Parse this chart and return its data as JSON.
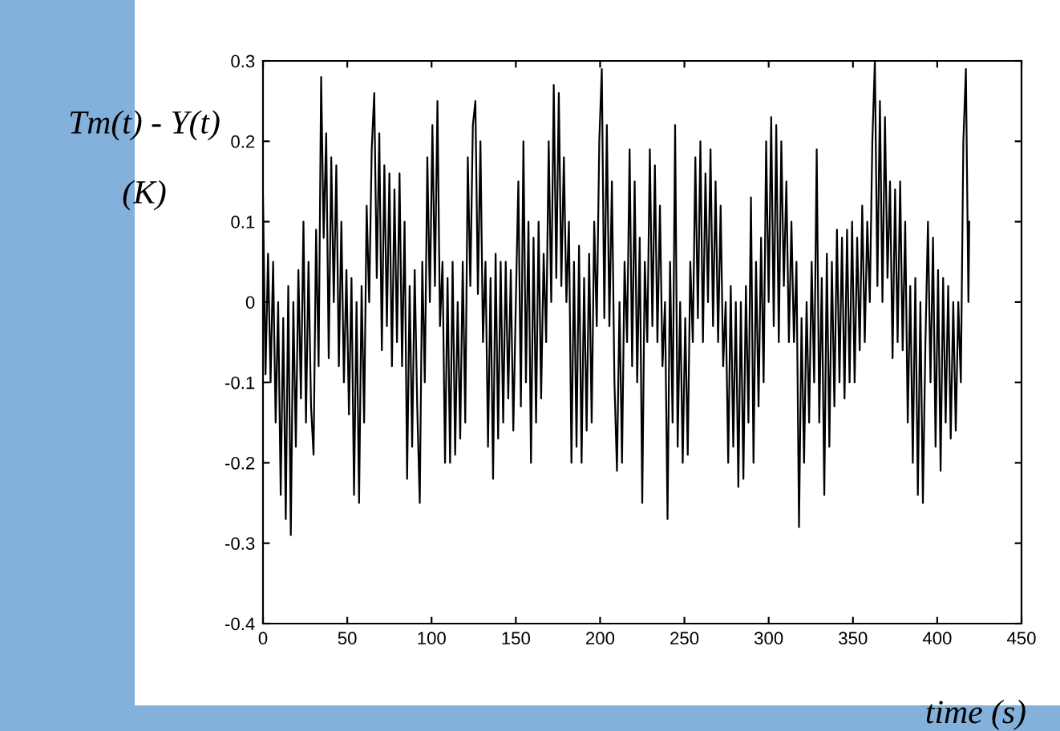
{
  "chart_data": {
    "type": "line",
    "xlabel": "time (s)",
    "ylabel": "Tm(t) - Y(t)\n\n(K)",
    "xlim": [
      0,
      450
    ],
    "ylim": [
      -0.4,
      0.3
    ],
    "xticks": [
      0,
      50,
      100,
      150,
      200,
      250,
      300,
      350,
      400,
      450
    ],
    "yticks": [
      -0.4,
      -0.3,
      -0.2,
      -0.1,
      0,
      0.1,
      0.2,
      0.3
    ],
    "series": [
      {
        "color": "#000000",
        "x": [
          0,
          1.5,
          3,
          4.5,
          6,
          7.5,
          9,
          10.5,
          12,
          13.5,
          15,
          16.5,
          18,
          19.5,
          21,
          22.5,
          24,
          25.5,
          27,
          28.5,
          30,
          31.5,
          33,
          34.5,
          36,
          37.5,
          39,
          40.5,
          42,
          43.5,
          45,
          46.5,
          48,
          49.5,
          51,
          52.5,
          54,
          55.5,
          57,
          58.5,
          60,
          61.5,
          63,
          64.5,
          66,
          67.5,
          69,
          70.5,
          72,
          73.5,
          75,
          76.5,
          78,
          79.5,
          81,
          82.5,
          84,
          85.5,
          87,
          88.5,
          90,
          91.5,
          93,
          94.5,
          96,
          97.5,
          99,
          100.5,
          102,
          103.5,
          105,
          106.5,
          108,
          109.5,
          111,
          112.5,
          114,
          115.5,
          117,
          118.5,
          120,
          121.5,
          123,
          124.5,
          126,
          127.5,
          129,
          130.5,
          132,
          133.5,
          135,
          136.5,
          138,
          139.5,
          141,
          142.5,
          144,
          145.5,
          147,
          148.5,
          150,
          151.5,
          153,
          154.5,
          156,
          157.5,
          159,
          160.5,
          162,
          163.5,
          165,
          166.5,
          168,
          169.5,
          171,
          172.5,
          174,
          175.5,
          177,
          178.5,
          180,
          181.5,
          183,
          184.5,
          186,
          187.5,
          189,
          190.5,
          192,
          193.5,
          195,
          196.5,
          198,
          199.5,
          201,
          202.5,
          204,
          205.5,
          207,
          208.5,
          210,
          211.5,
          213,
          214.5,
          216,
          217.5,
          219,
          220.5,
          222,
          223.5,
          225,
          226.5,
          228,
          229.5,
          231,
          232.5,
          234,
          235.5,
          237,
          238.5,
          240,
          241.5,
          243,
          244.5,
          246,
          247.5,
          249,
          250.5,
          252,
          253.5,
          255,
          256.5,
          258,
          259.5,
          261,
          262.5,
          264,
          265.5,
          267,
          268.5,
          270,
          271.5,
          273,
          274.5,
          276,
          277.5,
          279,
          280.5,
          282,
          283.5,
          285,
          286.5,
          288,
          289.5,
          291,
          292.5,
          294,
          295.5,
          297,
          298.5,
          300,
          301.5,
          303,
          304.5,
          306,
          307.5,
          309,
          310.5,
          312,
          313.5,
          315,
          316.5,
          318,
          319.5,
          321,
          322.5,
          324,
          325.5,
          327,
          328.5,
          330,
          331.5,
          333,
          334.5,
          336,
          337.5,
          339,
          340.5,
          342,
          343.5,
          345,
          346.5,
          348,
          349.5,
          351,
          352.5,
          354,
          355.5,
          357,
          358.5,
          360,
          361.5,
          363,
          364.5,
          366,
          367.5,
          369,
          370.5,
          372,
          373.5,
          375,
          376.5,
          378,
          379.5,
          381,
          382.5,
          384,
          385.5,
          387,
          388.5,
          390,
          391.5,
          393,
          394.5,
          396,
          397.5,
          399,
          400.5,
          402,
          403.5,
          405,
          406.5,
          408,
          409.5,
          411,
          412.5,
          414,
          415.5,
          417,
          418.5,
          419
        ],
        "values": [
          0.13,
          -0.09,
          0.06,
          -0.1,
          0.05,
          -0.15,
          0.0,
          -0.24,
          -0.02,
          -0.27,
          0.02,
          -0.29,
          0.0,
          -0.18,
          0.04,
          -0.12,
          0.1,
          -0.15,
          0.05,
          -0.13,
          -0.19,
          0.09,
          -0.08,
          0.28,
          0.08,
          0.21,
          -0.07,
          0.18,
          0.0,
          0.17,
          -0.08,
          0.1,
          -0.1,
          0.04,
          -0.14,
          0.03,
          -0.24,
          0.0,
          -0.25,
          0.02,
          -0.15,
          0.12,
          0.0,
          0.19,
          0.26,
          0.03,
          0.21,
          -0.06,
          0.17,
          -0.03,
          0.16,
          -0.08,
          0.14,
          -0.05,
          0.16,
          -0.08,
          0.1,
          -0.22,
          0.02,
          -0.18,
          0.04,
          -0.13,
          -0.25,
          0.05,
          -0.1,
          0.18,
          0.0,
          0.22,
          0.02,
          0.25,
          -0.03,
          0.05,
          -0.2,
          0.03,
          -0.2,
          0.05,
          -0.19,
          0.0,
          -0.17,
          0.05,
          -0.15,
          0.18,
          0.02,
          0.22,
          0.25,
          0.01,
          0.2,
          -0.05,
          0.05,
          -0.18,
          0.03,
          -0.22,
          0.06,
          -0.17,
          0.05,
          -0.15,
          0.05,
          -0.12,
          0.04,
          -0.16,
          0.0,
          0.15,
          -0.13,
          0.2,
          -0.1,
          0.1,
          -0.2,
          0.08,
          -0.15,
          0.1,
          -0.12,
          0.06,
          -0.05,
          0.2,
          0.0,
          0.27,
          0.03,
          0.26,
          0.02,
          0.18,
          0.0,
          0.1,
          -0.2,
          0.05,
          -0.18,
          0.07,
          -0.2,
          0.03,
          -0.16,
          0.06,
          -0.15,
          0.1,
          -0.03,
          0.2,
          0.29,
          -0.02,
          0.22,
          -0.03,
          0.15,
          -0.1,
          -0.21,
          0.0,
          -0.2,
          0.05,
          -0.05,
          0.19,
          -0.08,
          0.15,
          -0.1,
          0.08,
          -0.25,
          0.05,
          -0.05,
          0.19,
          -0.03,
          0.17,
          -0.05,
          0.12,
          -0.08,
          0.0,
          -0.27,
          0.05,
          -0.15,
          0.22,
          -0.18,
          0.0,
          -0.2,
          -0.02,
          -0.19,
          0.05,
          -0.05,
          0.18,
          -0.02,
          0.2,
          -0.05,
          0.16,
          0.0,
          0.19,
          -0.03,
          0.15,
          -0.05,
          0.12,
          -0.08,
          0.0,
          -0.2,
          0.02,
          -0.18,
          0.0,
          -0.23,
          0.0,
          -0.22,
          0.02,
          -0.15,
          0.13,
          -0.2,
          0.05,
          -0.13,
          0.08,
          -0.1,
          0.2,
          0.0,
          0.23,
          -0.03,
          0.22,
          -0.05,
          0.2,
          0.02,
          0.15,
          -0.05,
          0.1,
          -0.05,
          0.05,
          -0.28,
          -0.02,
          -0.2,
          0.0,
          -0.15,
          0.05,
          -0.1,
          0.19,
          -0.15,
          0.03,
          -0.24,
          0.06,
          -0.18,
          0.05,
          -0.13,
          0.09,
          -0.1,
          0.08,
          -0.12,
          0.09,
          -0.1,
          0.1,
          -0.1,
          0.08,
          -0.06,
          0.12,
          -0.05,
          0.1,
          0.0,
          0.2,
          0.3,
          0.02,
          0.25,
          0.0,
          0.23,
          0.03,
          0.15,
          -0.07,
          0.14,
          -0.05,
          0.15,
          -0.06,
          0.1,
          -0.15,
          0.02,
          -0.2,
          0.03,
          -0.24,
          0.0,
          -0.25,
          -0.05,
          0.1,
          -0.1,
          0.08,
          -0.18,
          0.04,
          -0.21,
          0.03,
          -0.15,
          0.02,
          -0.17,
          0.0,
          -0.16,
          0.0,
          -0.1,
          0.2,
          0.29,
          0.0,
          0.1
        ]
      }
    ]
  }
}
